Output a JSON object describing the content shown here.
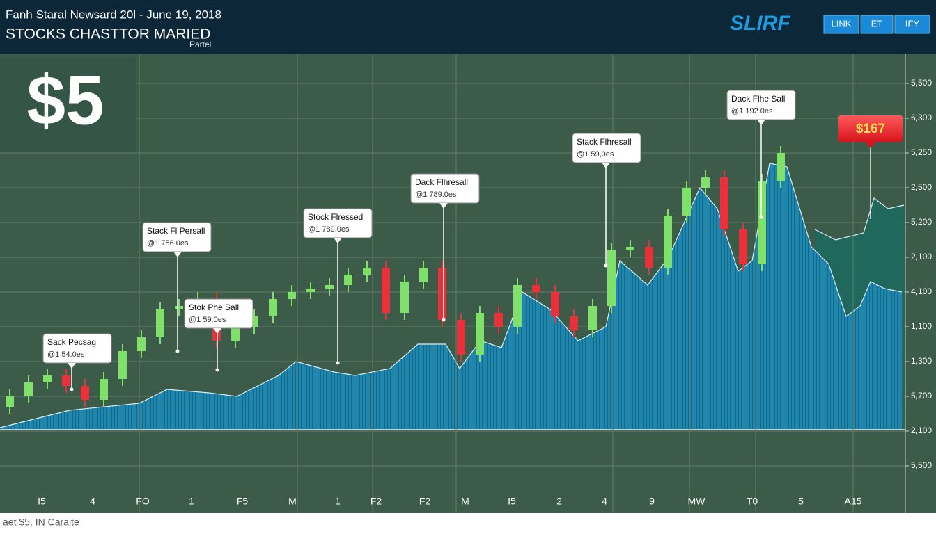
{
  "header": {
    "title": "Fanh Staral Newsard 20l - June 19, 2018",
    "subtitle": "STOCKS CHASTTOR MARIED",
    "note": "Partel",
    "logo": "SLIRF",
    "buttons": [
      "LINK",
      "ET",
      "IFY"
    ]
  },
  "badge": "$5",
  "footer": "aet $5, IN Caraite",
  "chart_data": {
    "type": "candlestick",
    "ylim": [
      -1.36,
      11.84
    ],
    "yticks": [
      {
        "value": 11,
        "label": "5,500"
      },
      {
        "value": 10,
        "label": "6,300"
      },
      {
        "value": 9,
        "label": "5,250"
      },
      {
        "value": 8,
        "label": "2,500"
      },
      {
        "value": 7,
        "label": "5,200"
      },
      {
        "value": 6,
        "label": "2,100"
      },
      {
        "value": 5,
        "label": "4,100"
      },
      {
        "value": 4,
        "label": "1,100"
      },
      {
        "value": 3,
        "label": "1,300"
      },
      {
        "value": 2,
        "label": "5,700"
      },
      {
        "value": 1,
        "label": "2,100"
      },
      {
        "value": 0,
        "label": "5,500"
      }
    ],
    "xlim": [
      0,
      1300
    ],
    "categories": [
      "I5",
      "4",
      "FO",
      "1",
      "F5",
      "M",
      "1",
      "F2",
      "F2",
      "M",
      "I5",
      "2",
      "4",
      "9",
      "MW",
      "T0",
      "5",
      "A15"
    ],
    "up_color": "#7fe06a",
    "down_color": "#e8313a",
    "open": [
      1.7,
      2.0,
      2.4,
      2.6,
      2.3,
      1.9,
      2.5,
      3.3,
      3.7,
      4.5,
      4.6,
      4.8,
      3.6,
      4.0,
      4.3,
      4.8,
      5.0,
      5.1,
      5.2,
      5.5,
      5.7,
      4.4,
      5.3,
      5.7,
      4.2,
      3.2,
      4.4,
      4.0,
      5.2,
      5.0,
      4.3,
      3.9,
      4.6,
      6.2,
      6.3,
      5.7,
      7.2,
      8.0,
      8.3,
      6.8,
      5.8,
      8.2
    ],
    "high": [
      2.2,
      2.6,
      2.8,
      2.8,
      2.5,
      2.7,
      3.5,
      3.9,
      4.7,
      4.8,
      5.0,
      5.0,
      4.2,
      4.5,
      5.0,
      5.2,
      5.3,
      5.4,
      5.7,
      5.9,
      5.9,
      5.5,
      5.9,
      5.9,
      4.4,
      4.6,
      4.6,
      5.4,
      5.4,
      5.2,
      4.5,
      4.8,
      6.4,
      6.5,
      6.5,
      7.4,
      8.2,
      8.5,
      8.5,
      7.0,
      8.4,
      9.2
    ],
    "low": [
      1.5,
      1.8,
      2.2,
      2.1,
      1.7,
      1.7,
      2.3,
      3.1,
      3.5,
      4.3,
      4.4,
      3.4,
      3.4,
      3.8,
      4.1,
      4.6,
      4.8,
      4.9,
      5.0,
      5.3,
      4.2,
      4.2,
      5.1,
      4.0,
      3.0,
      3.0,
      3.8,
      3.8,
      4.8,
      4.1,
      3.7,
      3.7,
      4.4,
      6.0,
      5.5,
      5.5,
      7.0,
      7.8,
      6.6,
      5.6,
      5.6,
      8.0
    ],
    "close": [
      2.0,
      2.4,
      2.6,
      2.3,
      1.9,
      2.5,
      3.3,
      3.7,
      4.5,
      4.6,
      4.8,
      3.6,
      4.0,
      4.3,
      4.8,
      5.0,
      5.1,
      5.2,
      5.5,
      5.7,
      4.4,
      5.3,
      5.7,
      4.2,
      3.2,
      4.4,
      4.0,
      5.2,
      5.0,
      4.3,
      3.9,
      4.6,
      6.2,
      6.3,
      5.7,
      7.2,
      8.0,
      8.3,
      6.8,
      5.8,
      8.2,
      9.0
    ],
    "area": {
      "color": "#1f86ad",
      "x": [
        0,
        100,
        200,
        240,
        300,
        340,
        400,
        425,
        480,
        510,
        560,
        600,
        640,
        660,
        690,
        720,
        750,
        790,
        830,
        870,
        890,
        930,
        960,
        1005,
        1030,
        1060,
        1080,
        1105,
        1130,
        1165,
        1190,
        1215,
        1235,
        1250,
        1270,
        1295
      ],
      "values": [
        1.1,
        1.6,
        1.8,
        2.2,
        2.1,
        2.0,
        2.6,
        3.0,
        2.7,
        2.6,
        2.8,
        3.5,
        3.5,
        2.8,
        3.6,
        3.4,
        5.0,
        4.5,
        3.6,
        4.0,
        5.9,
        5.2,
        6.0,
        8.0,
        7.4,
        5.6,
        5.9,
        8.7,
        8.6,
        6.3,
        5.8,
        4.3,
        4.6,
        5.3,
        5.1,
        5.0
      ]
    },
    "area2": {
      "color": "#1b6a60",
      "x": [
        1170,
        1200,
        1240,
        1255,
        1275,
        1298
      ],
      "values": [
        6.8,
        6.5,
        6.7,
        7.7,
        7.4,
        7.5
      ]
    },
    "annotations": [
      {
        "title": "Sack Pecsag",
        "detail": "@1 54.0es"
      },
      {
        "title": "Stack Fl Persall",
        "detail": "@1 756.0es"
      },
      {
        "title": "Stok Phe Sall",
        "detail": "@1 59.0es"
      },
      {
        "title": "Stock Flressed",
        "detail": "@1 789.0es"
      },
      {
        "title": "Dack Flhresall",
        "detail": "@1 789.0es"
      },
      {
        "title": "Stack Flhresall",
        "detail": "@1 59,0es"
      },
      {
        "title": "Dack Flhe Sall",
        "detail": "@1 192.0es"
      }
    ],
    "price_tag": "$167"
  }
}
